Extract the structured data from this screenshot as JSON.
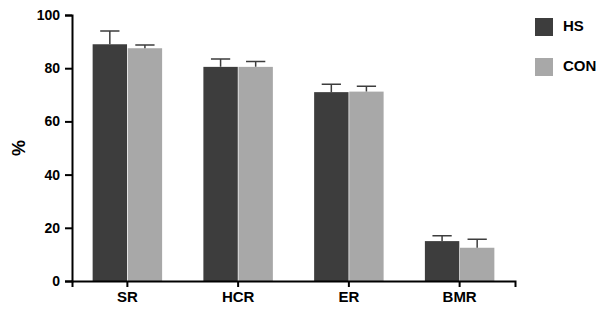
{
  "chart_data": {
    "type": "bar",
    "categories": [
      "SR",
      "HCR",
      "ER",
      "BMR"
    ],
    "series": [
      {
        "name": "HS",
        "color": "#3d3d3d",
        "values": [
          89,
          80.5,
          71,
          15
        ],
        "errors": [
          5,
          3,
          3,
          2
        ]
      },
      {
        "name": "CON",
        "color": "#a8a8a8",
        "values": [
          87.5,
          80.5,
          71.2,
          12.5
        ],
        "errors": [
          1.2,
          2,
          2,
          3.2
        ]
      }
    ],
    "y_label": "%",
    "ylim": [
      0,
      100
    ],
    "yticks": [
      0,
      20,
      40,
      60,
      80,
      100
    ],
    "grid": false,
    "legend": "right"
  }
}
